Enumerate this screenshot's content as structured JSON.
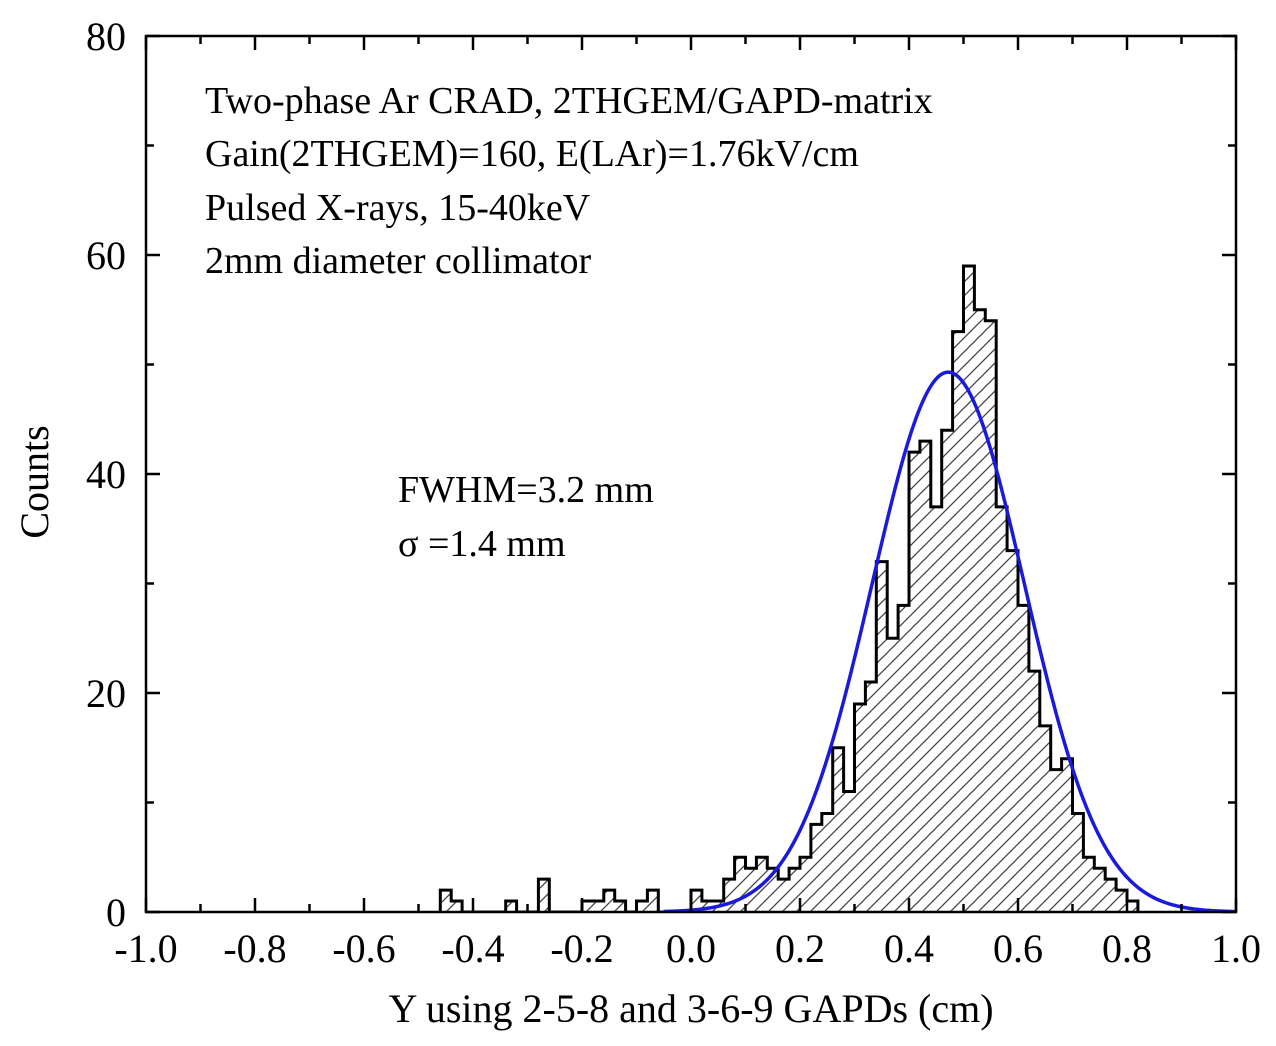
{
  "chart_data": {
    "type": "histogram",
    "title": "",
    "xlabel": "Y using 2-5-8 and 3-6-9 GAPDs (cm)",
    "ylabel": "Counts",
    "xlim": [
      -1.0,
      1.0
    ],
    "ylim": [
      0,
      80
    ],
    "x_ticks": [
      -1.0,
      -0.8,
      -0.6,
      -0.4,
      -0.2,
      0.0,
      0.2,
      0.4,
      0.6,
      0.8,
      1.0
    ],
    "x_tick_labels": [
      "-1.0",
      "-0.8",
      "-0.6",
      "-0.4",
      "-0.2",
      "0.0",
      "0.2",
      "0.4",
      "0.6",
      "0.8",
      "1.0"
    ],
    "y_ticks": [
      0,
      20,
      40,
      60,
      80
    ],
    "y_tick_labels": [
      "0",
      "20",
      "40",
      "60",
      "80"
    ],
    "grid": false,
    "histogram": {
      "bin_width": 0.02,
      "x_start": -0.46,
      "counts": [
        2,
        1,
        0,
        0,
        0,
        0,
        1,
        0,
        0,
        3,
        0,
        0,
        0,
        1,
        1,
        2,
        1,
        0,
        1,
        2,
        0,
        0,
        0,
        2,
        1,
        1,
        3,
        5,
        4,
        5,
        4,
        3,
        4,
        5,
        8,
        9,
        15,
        11,
        19,
        21,
        32,
        25,
        28,
        42,
        43,
        37,
        44,
        53,
        59,
        55,
        54,
        37,
        33,
        28,
        22,
        17,
        13,
        14,
        9,
        5,
        4,
        3,
        2,
        1
      ],
      "fill_pattern": "diagonal-hatch",
      "outline_color": "#000000"
    },
    "fit": {
      "type": "gaussian",
      "amplitude": 49.3,
      "mean": 0.472,
      "sigma": 0.14,
      "color": "#1a1adc"
    },
    "annotations": [
      [
        "Two-phase Ar CRAD, 2THGEM/GAPD-matrix",
        "Gain(2THGEM)=160, E(LAr)=1.76kV/cm",
        "Pulsed X-rays, 15-40keV",
        "2mm diameter collimator"
      ],
      [
        "FWHM=3.2 mm",
        "σ =1.4 mm"
      ]
    ]
  }
}
